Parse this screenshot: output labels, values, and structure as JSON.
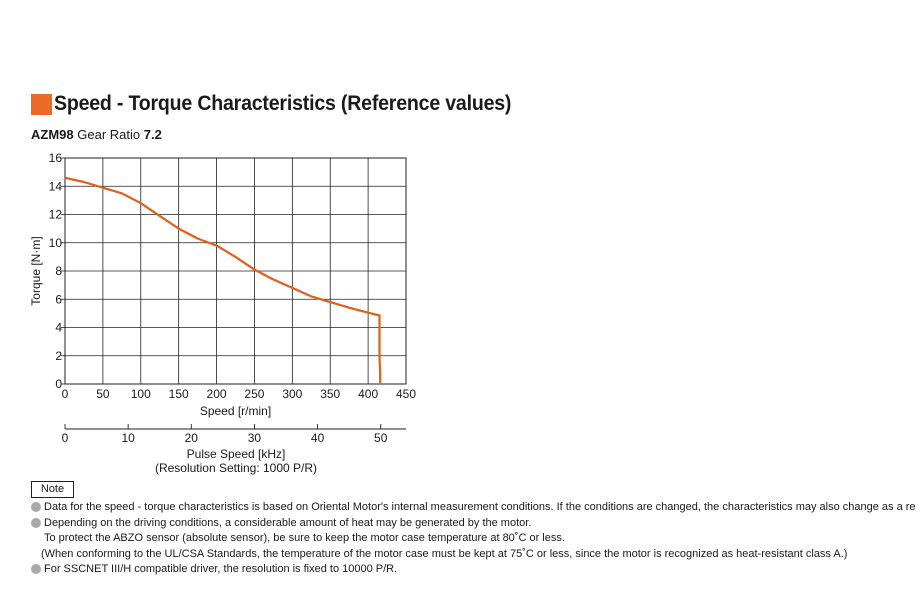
{
  "header": {
    "title": "Speed - Torque Characteristics (Reference values)",
    "model": "AZM98",
    "gear_ratio_label": "Gear Ratio",
    "gear_ratio_value": "7.2",
    "accent_color": "#ea6a27"
  },
  "chart_data": {
    "type": "line",
    "title": "",
    "xlabel": "Speed [r/min]",
    "ylabel": "Torque [N·m]",
    "xlim": [
      0,
      450
    ],
    "ylim": [
      0,
      16
    ],
    "x_ticks": [
      "0",
      "50",
      "100",
      "150",
      "200",
      "250",
      "300",
      "350",
      "400",
      "450"
    ],
    "y_ticks": [
      "0",
      "2",
      "4",
      "6",
      "8",
      "10",
      "12",
      "14",
      "16"
    ],
    "grid": true,
    "secondary_axis": {
      "xlabel": "Pulse Speed [kHz]",
      "xlabel_note": "(Resolution Setting: 1000 P/R)",
      "xlim": [
        0,
        54
      ],
      "ticks": [
        "0",
        "10",
        "20",
        "30",
        "40",
        "50"
      ]
    },
    "series": [
      {
        "color": "#e35f17",
        "x": [
          0,
          25,
          50,
          75,
          100,
          125,
          150,
          175,
          200,
          225,
          250,
          275,
          300,
          325,
          350,
          375,
          400,
          415,
          415,
          416,
          416
        ],
        "y": [
          14.6,
          14.3,
          13.9,
          13.5,
          12.8,
          11.9,
          11.0,
          10.3,
          9.8,
          9.0,
          8.1,
          7.4,
          6.8,
          6.2,
          5.8,
          5.4,
          5.05,
          4.85,
          2.0,
          0.5,
          0
        ]
      }
    ]
  },
  "notes": {
    "badge": "Note",
    "items": [
      "Data for the speed - torque characteristics is based on Oriental Motor's internal measurement conditions. If the conditions are changed, the characteristics may also change as a result.",
      "Depending on the driving conditions, a considerable amount of heat may be generated by the motor."
    ],
    "item2_line2": "To protect the ABZO sensor (absolute sensor), be sure to keep the motor case temperature at 80˚C or less.",
    "item2_line3": "(When conforming to the UL/CSA Standards, the temperature of the motor case must be kept at 75˚C or less, since the motor is recognized as heat-resistant class A.)",
    "item3": "For SSCNET III/H compatible driver, the resolution is fixed to 10000 P/R."
  }
}
